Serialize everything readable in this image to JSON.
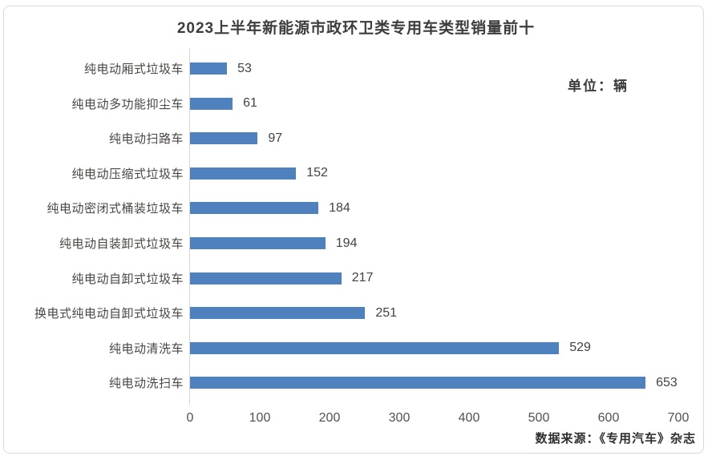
{
  "title": "2023上半年新能源市政环卫类专用车类型销量前十",
  "unit_label": "单位：辆",
  "source": "数据来源：《专用汽车》杂志",
  "chart_data": {
    "type": "bar",
    "orientation": "horizontal",
    "title": "2023上半年新能源市政环卫类专用车类型销量前十",
    "categories": [
      "纯电动厢式垃圾车",
      "纯电动多功能抑尘车",
      "纯电动扫路车",
      "纯电动压缩式垃圾车",
      "纯电动密闭式桶装垃圾车",
      "纯电动自装卸式垃圾车",
      "纯电动自卸式垃圾车",
      "换电式纯电动自卸式垃圾车",
      "纯电动清洗车",
      "纯电动洗扫车"
    ],
    "values": [
      53,
      61,
      97,
      152,
      184,
      194,
      217,
      251,
      529,
      653
    ],
    "value_labels_shown": true,
    "xlim": [
      0,
      700
    ],
    "x_ticks": [
      0,
      100,
      200,
      300,
      400,
      500,
      600,
      700
    ],
    "grid": false,
    "legend": "none",
    "bar_color": "#4E81BD",
    "unit_label": "单位：辆",
    "source": "数据来源：《专用汽车》杂志"
  }
}
